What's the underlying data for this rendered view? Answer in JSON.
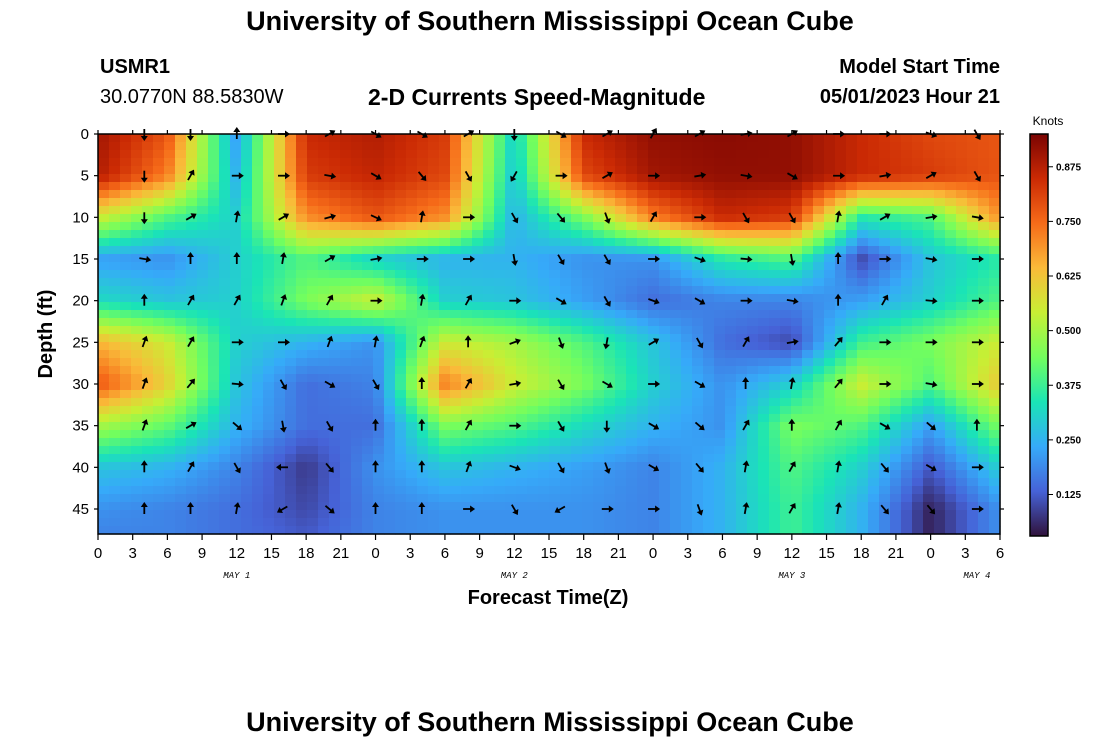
{
  "header": {
    "title": "University of Southern Mississippi Ocean Cube",
    "station": "USMR1",
    "coords": "30.0770N  88.5830W",
    "subtitle": "2-D Currents Speed-Magnitude",
    "model_start_label": "Model Start Time",
    "model_start_value": "05/01/2023 Hour 21"
  },
  "footer": {
    "title": "University of Southern Mississippi Ocean Cube"
  },
  "chart_data": {
    "type": "heatmap",
    "title": "2-D Currents Speed-Magnitude",
    "xlabel": "Forecast Time(Z)",
    "ylabel": "Depth (ft)",
    "x_ticks": [
      "0",
      "3",
      "6",
      "9",
      "12",
      "15",
      "18",
      "21",
      "0",
      "3",
      "6",
      "9",
      "12",
      "15",
      "18",
      "21",
      "0",
      "3",
      "6",
      "9",
      "12",
      "15",
      "18",
      "21",
      "0",
      "3",
      "6"
    ],
    "date_labels": [
      "MAY 1",
      "MAY 2",
      "MAY 3",
      "MAY 4"
    ],
    "x_hours_range": [
      0,
      78
    ],
    "y_ticks": [
      0,
      5,
      10,
      15,
      20,
      25,
      30,
      35,
      40,
      45
    ],
    "ylim": [
      0,
      48
    ],
    "colorbar": {
      "label": "Knots",
      "ticks": [
        0.125,
        0.25,
        0.375,
        0.5,
        0.625,
        0.75,
        0.875
      ],
      "tick_labels": [
        "0.125",
        "0.250",
        "0.375",
        "0.500",
        "0.625",
        "0.750",
        "0.875"
      ],
      "range": [
        0.03,
        0.95
      ],
      "colormap": [
        "#30123b",
        "#4662d7",
        "#36aaf9",
        "#1ae4b6",
        "#72fe5e",
        "#c8ef34",
        "#faba39",
        "#f66b19",
        "#cb2a04",
        "#7a0403"
      ]
    },
    "speed_grid": {
      "hours": [
        0,
        6,
        12,
        18,
        24,
        30,
        36,
        42,
        48,
        54,
        60,
        66,
        72,
        78
      ],
      "depths": [
        0,
        5,
        10,
        15,
        20,
        25,
        30,
        35,
        40,
        45,
        48
      ],
      "values": [
        [
          0.9,
          0.78,
          0.22,
          0.85,
          0.88,
          0.82,
          0.3,
          0.85,
          0.92,
          0.93,
          0.92,
          0.85,
          0.8,
          0.78
        ],
        [
          0.88,
          0.72,
          0.25,
          0.82,
          0.86,
          0.8,
          0.28,
          0.8,
          0.9,
          0.92,
          0.92,
          0.85,
          0.82,
          0.78
        ],
        [
          0.55,
          0.4,
          0.3,
          0.7,
          0.78,
          0.7,
          0.25,
          0.45,
          0.72,
          0.85,
          0.82,
          0.35,
          0.4,
          0.7
        ],
        [
          0.22,
          0.2,
          0.3,
          0.4,
          0.3,
          0.25,
          0.25,
          0.2,
          0.2,
          0.35,
          0.4,
          0.1,
          0.28,
          0.35
        ],
        [
          0.32,
          0.28,
          0.3,
          0.45,
          0.55,
          0.3,
          0.28,
          0.22,
          0.15,
          0.18,
          0.18,
          0.22,
          0.3,
          0.4
        ],
        [
          0.65,
          0.55,
          0.3,
          0.25,
          0.2,
          0.55,
          0.5,
          0.4,
          0.28,
          0.15,
          0.1,
          0.38,
          0.45,
          0.55
        ],
        [
          0.78,
          0.6,
          0.28,
          0.15,
          0.18,
          0.72,
          0.55,
          0.45,
          0.3,
          0.2,
          0.3,
          0.55,
          0.4,
          0.62
        ],
        [
          0.5,
          0.42,
          0.25,
          0.15,
          0.15,
          0.45,
          0.4,
          0.32,
          0.25,
          0.2,
          0.45,
          0.4,
          0.22,
          0.45
        ],
        [
          0.28,
          0.25,
          0.18,
          0.08,
          0.2,
          0.28,
          0.25,
          0.22,
          0.18,
          0.25,
          0.4,
          0.3,
          0.12,
          0.3
        ],
        [
          0.2,
          0.18,
          0.15,
          0.1,
          0.18,
          0.2,
          0.2,
          0.2,
          0.18,
          0.25,
          0.38,
          0.25,
          0.05,
          0.2
        ],
        [
          0.18,
          0.18,
          0.15,
          0.12,
          0.18,
          0.2,
          0.2,
          0.2,
          0.18,
          0.25,
          0.38,
          0.25,
          0.05,
          0.2
        ]
      ]
    },
    "vectors": {
      "hours": [
        4,
        8,
        12,
        16,
        20,
        24,
        28,
        32,
        36,
        40,
        44,
        48,
        52,
        56,
        60,
        64,
        68,
        72,
        76
      ],
      "depths": [
        0,
        5,
        10,
        15,
        20,
        25,
        30,
        35,
        40,
        45
      ],
      "note_directions_deg_from_north_clockwise": true,
      "directions": [
        [
          180,
          180,
          0,
          90,
          60,
          120,
          120,
          60,
          180,
          120,
          60,
          30,
          60,
          80,
          60,
          90,
          90,
          110,
          150
        ],
        [
          180,
          30,
          90,
          90,
          100,
          120,
          140,
          150,
          210,
          90,
          60,
          90,
          80,
          100,
          120,
          90,
          80,
          60,
          150
        ],
        [
          180,
          60,
          10,
          60,
          75,
          115,
          10,
          90,
          150,
          140,
          160,
          30,
          90,
          150,
          150,
          10,
          60,
          80,
          100
        ],
        [
          100,
          0,
          0,
          10,
          60,
          80,
          90,
          90,
          170,
          150,
          150,
          90,
          110,
          95,
          170,
          0,
          90,
          100,
          90
        ],
        [
          0,
          30,
          30,
          20,
          30,
          90,
          10,
          30,
          90,
          120,
          150,
          110,
          120,
          90,
          100,
          0,
          30,
          95,
          90
        ],
        [
          20,
          30,
          90,
          90,
          20,
          10,
          20,
          0,
          70,
          160,
          190,
          60,
          150,
          30,
          80,
          40,
          90,
          90,
          90
        ],
        [
          20,
          40,
          95,
          150,
          120,
          150,
          0,
          30,
          80,
          150,
          120,
          90,
          120,
          0,
          10,
          40,
          90,
          100,
          90
        ],
        [
          20,
          60,
          130,
          170,
          150,
          0,
          0,
          30,
          90,
          150,
          180,
          120,
          130,
          30,
          0,
          30,
          120,
          130,
          0
        ],
        [
          0,
          30,
          150,
          270,
          140,
          0,
          0,
          20,
          110,
          150,
          160,
          120,
          140,
          10,
          30,
          10,
          140,
          120,
          90
        ],
        [
          0,
          0,
          10,
          240,
          130,
          0,
          0,
          90,
          150,
          240,
          90,
          90,
          160,
          10,
          30,
          10,
          140,
          140,
          90
        ]
      ]
    }
  }
}
